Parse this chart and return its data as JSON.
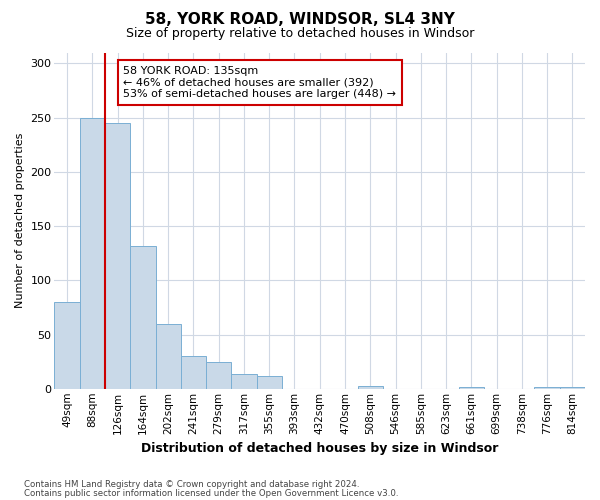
{
  "title": "58, YORK ROAD, WINDSOR, SL4 3NY",
  "subtitle": "Size of property relative to detached houses in Windsor",
  "xlabel": "Distribution of detached houses by size in Windsor",
  "ylabel": "Number of detached properties",
  "bar_color": "#c9d9e8",
  "bar_edge_color": "#7aafd4",
  "bin_labels": [
    "49sqm",
    "88sqm",
    "126sqm",
    "164sqm",
    "202sqm",
    "241sqm",
    "279sqm",
    "317sqm",
    "355sqm",
    "393sqm",
    "432sqm",
    "470sqm",
    "508sqm",
    "546sqm",
    "585sqm",
    "623sqm",
    "661sqm",
    "699sqm",
    "738sqm",
    "776sqm",
    "814sqm"
  ],
  "bar_values": [
    80,
    250,
    245,
    132,
    60,
    30,
    25,
    14,
    12,
    0,
    0,
    0,
    3,
    0,
    0,
    0,
    2,
    0,
    0,
    2,
    2
  ],
  "ylim": [
    0,
    310
  ],
  "yticks": [
    0,
    50,
    100,
    150,
    200,
    250,
    300
  ],
  "vline_color": "#cc0000",
  "annotation_title": "58 YORK ROAD: 135sqm",
  "annotation_line1": "← 46% of detached houses are smaller (392)",
  "annotation_line2": "53% of semi-detached houses are larger (448) →",
  "annotation_box_color": "#ffffff",
  "annotation_box_edge_color": "#cc0000",
  "footer1": "Contains HM Land Registry data © Crown copyright and database right 2024.",
  "footer2": "Contains public sector information licensed under the Open Government Licence v3.0.",
  "background_color": "#ffffff",
  "grid_color": "#d0d8e4"
}
